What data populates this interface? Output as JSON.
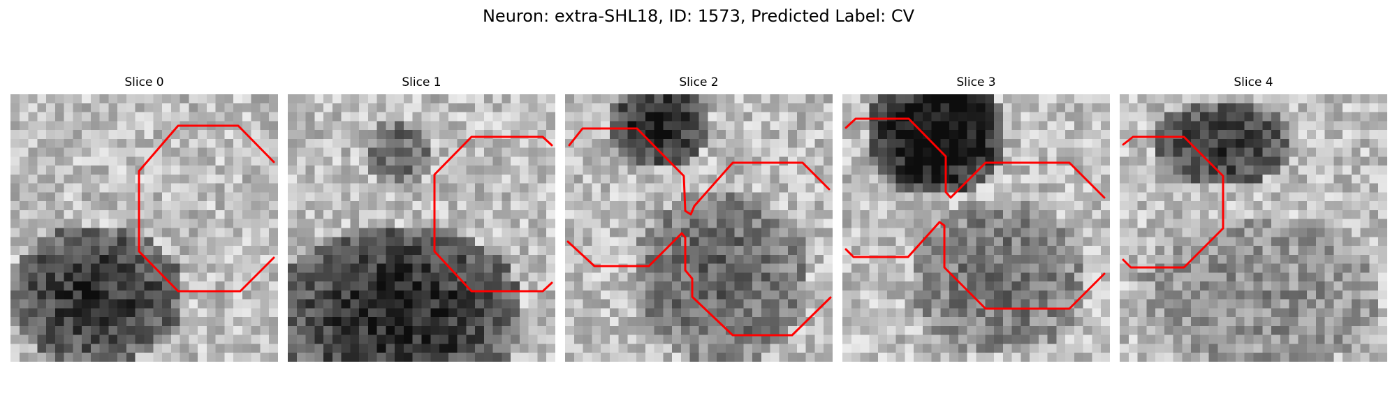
{
  "title": "Neuron: extra-SHL18, ID: 1573, Predicted Label: CV",
  "overlay_color": "#ff0000",
  "colormap": "grayscale",
  "panels": [
    {
      "title": "Slice 0"
    },
    {
      "title": "Slice 1"
    },
    {
      "title": "Slice 2"
    },
    {
      "title": "Slice 3"
    },
    {
      "title": "Slice 4"
    }
  ]
}
